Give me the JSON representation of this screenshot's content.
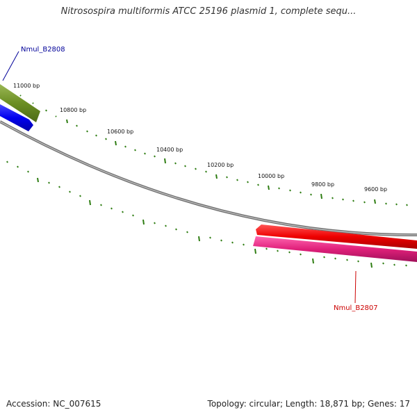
{
  "title": "Nitrosospira multiformis ATCC 25196 plasmid 1, complete sequ...",
  "footer": {
    "accession": "Accession: NC_007615",
    "summary": "Topology: circular; Length: 18,871 bp; Genes: 17"
  },
  "scale_labels": [
    "11000 bp",
    "10800 bp",
    "10600 bp",
    "10400 bp",
    "10200 bp",
    "10000 bp",
    "9800 bp",
    "9600 bp"
  ],
  "genes": [
    {
      "name": "Nmul_B2808",
      "color": "#000099"
    },
    {
      "name": "Nmul_B2807",
      "color": "#cc0000"
    }
  ],
  "colors": {
    "backbone": "#888888",
    "ticks": "#2e7d12",
    "olive_feature": "#6b8e23",
    "blue_feature": "#0000ee",
    "red_feature": "#ee0000",
    "pink_feature": "#e0207a"
  }
}
